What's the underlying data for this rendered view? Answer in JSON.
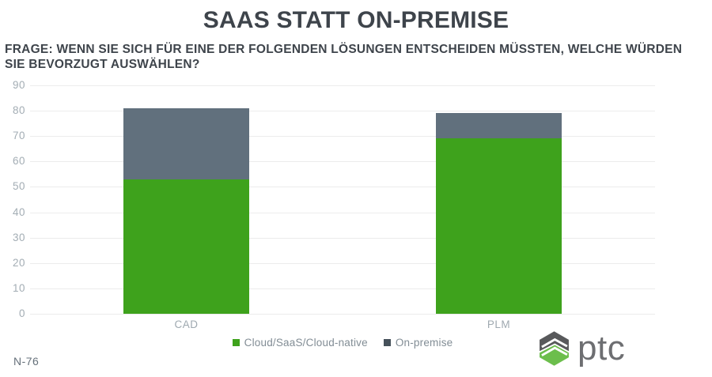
{
  "title": "SAAS STATT ON-PREMISE",
  "subtitle_line1": "FRAGE: WENN SIE SICH FÜR EINE DER FOLGENDEN LÖSUNGEN ENTSCHEIDEN MÜSSTEN, WELCHE WÜRDEN",
  "subtitle_line2": "SIE BEVORZUGT AUSWÄHLEN?",
  "footnote": "N-76",
  "logo": {
    "text": "ptc",
    "icon": "ptc-hexagon-icon"
  },
  "colors": {
    "bar_green": "#3ea21c",
    "bar_slate": "#61707d",
    "legend_marker_green": "#3ea21c",
    "legend_marker_slate": "#46515a",
    "grid": "#ececec",
    "tick_text": "#a3adb4",
    "heading_text": "#3e444b",
    "logo_gray": "#58595b",
    "logo_green": "#6cbe4c"
  },
  "chart_data": {
    "type": "bar",
    "stacked": true,
    "categories": [
      "CAD",
      "PLM"
    ],
    "series": [
      {
        "name": "Cloud/SaaS/Cloud-native",
        "values": [
          53,
          69
        ],
        "color": "#3ea21c"
      },
      {
        "name": "On-premise",
        "values": [
          28,
          10
        ],
        "color": "#61707d"
      }
    ],
    "totals": [
      81,
      79
    ],
    "ylim": [
      0,
      90
    ],
    "yticks": [
      0,
      10,
      20,
      30,
      40,
      50,
      60,
      70,
      80,
      90
    ],
    "grid": true,
    "legend_position": "bottom"
  }
}
